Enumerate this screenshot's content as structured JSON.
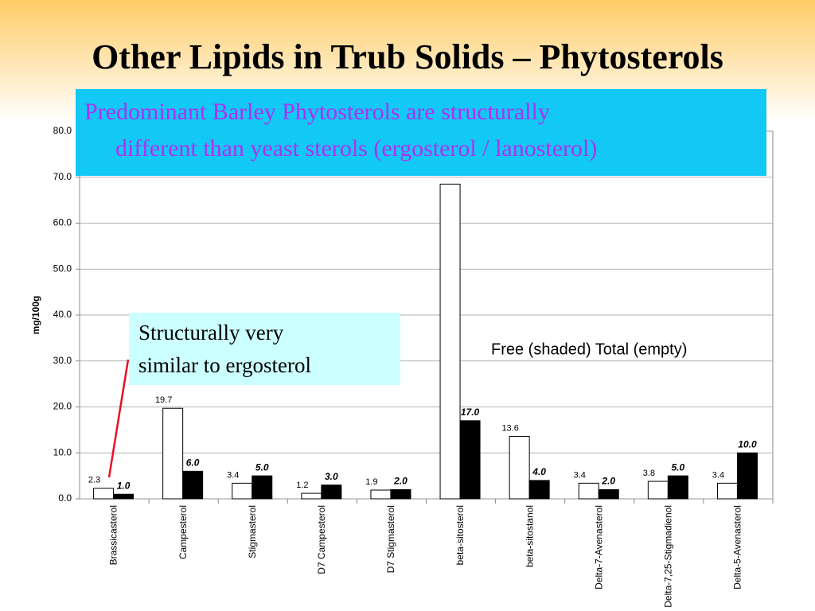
{
  "chart_data": {
    "type": "bar",
    "title": "Other Lipids in Trub Solids – Phytosterols",
    "callout": [
      "Predominant Barley Phytosterols are structurally",
      "different than yeast sterols (ergosterol / lanosterol)"
    ],
    "note": [
      "Structurally very",
      "similar to ergosterol"
    ],
    "legend_text": "Free (shaded)  Total (empty)",
    "ylabel": "mg/100g",
    "categories": [
      "Brassicasterol",
      "Campesterol",
      "Stigmasterol",
      "D7 Campesterol",
      "D7 Stigmasterol",
      "beta-sitosterol",
      "beta-sitostanol",
      "Delta-7-Avenasterol",
      "Delta-7,25-Stigmadienol",
      "Delta-5-Avenasterol"
    ],
    "series": [
      {
        "name": "Total",
        "color": "#ffffff",
        "values": [
          2.3,
          19.7,
          3.4,
          1.2,
          1.9,
          68.5,
          13.6,
          3.4,
          3.8,
          3.4
        ],
        "value_labels": [
          "2.3",
          "19.7",
          "3.4",
          "1.2",
          "1.9",
          null,
          "13.6",
          "3.4",
          "3.8",
          "3.4"
        ]
      },
      {
        "name": "Free",
        "color": "#000000",
        "values": [
          1.0,
          6.0,
          5.0,
          3.0,
          2.0,
          17.0,
          4.0,
          2.0,
          5.0,
          10.0
        ],
        "value_labels": [
          "1.0",
          "6.0",
          "5.0",
          "3.0",
          "2.0",
          "17.0",
          "4.0",
          "2.0",
          "5.0",
          "10.0"
        ]
      }
    ],
    "ylim": [
      0,
      80
    ],
    "yticks": [
      {
        "value": 0,
        "label": "0.0"
      },
      {
        "value": 10,
        "label": "10.0"
      },
      {
        "value": 20,
        "label": "20.0"
      },
      {
        "value": 30,
        "label": "30.0"
      },
      {
        "value": 40,
        "label": "40.0"
      },
      {
        "value": 50,
        "label": "50.0"
      },
      {
        "value": 60,
        "label": "60.0"
      },
      {
        "value": 70,
        "label": "70.0"
      },
      {
        "value": 80,
        "label": "80.0"
      }
    ],
    "grid": true
  }
}
